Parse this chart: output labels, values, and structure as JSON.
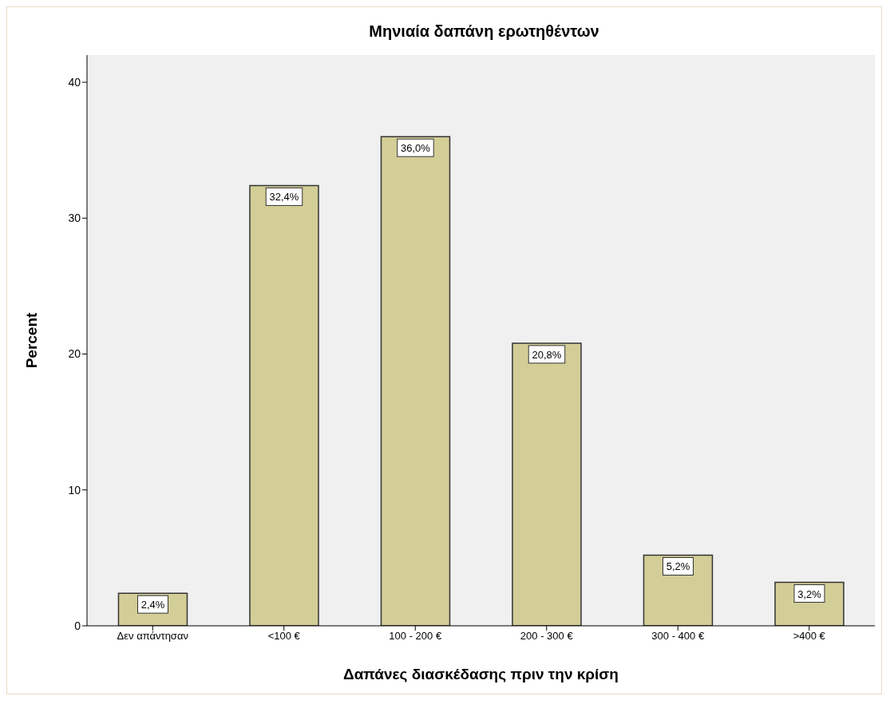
{
  "chart_data": {
    "type": "bar",
    "title": "Μηνιαία δαπάνη ερωτηθέντων",
    "xlabel": "Δαπάνες διασκέδασης πριν την κρίση",
    "ylabel": "Percent",
    "categories": [
      "Δεν απάντησαν",
      "<100 €",
      "100 - 200 €",
      "200 - 300 €",
      "300 - 400 €",
      ">400 €"
    ],
    "values": [
      2.4,
      32.4,
      36.0,
      20.8,
      5.2,
      3.2
    ],
    "value_labels": [
      "2,4%",
      "32,4%",
      "36,0%",
      "20,8%",
      "5,2%",
      "3,2%"
    ],
    "color": "#d3ce97",
    "ylim": [
      0,
      42
    ],
    "yticks": [
      0,
      10,
      20,
      30,
      40
    ]
  }
}
